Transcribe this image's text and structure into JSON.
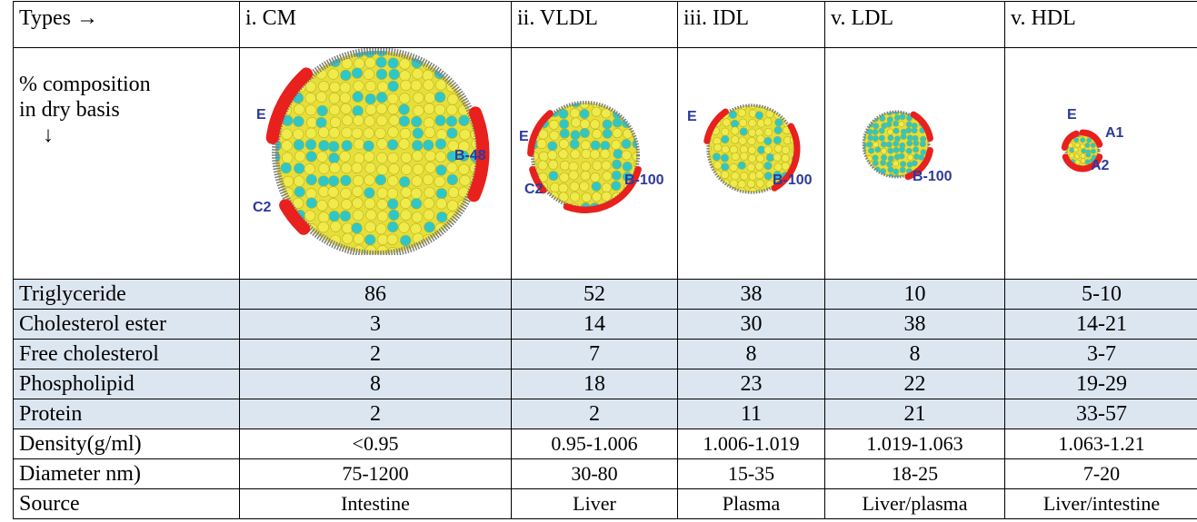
{
  "table": {
    "header": [
      "Types →",
      "i. CM",
      "ii. VLDL",
      "iii. IDL",
      "v. LDL",
      "v. HDL"
    ],
    "composition_label": [
      "% composition",
      "in dry basis",
      "↓"
    ],
    "diagrams": [
      {
        "labels": [
          "E",
          "B-48",
          "C2"
        ]
      },
      {
        "labels": [
          "E",
          "C2",
          "B-100"
        ]
      },
      {
        "labels": [
          "E",
          "B-100"
        ]
      },
      {
        "labels": [
          "B-100"
        ]
      },
      {
        "labels": [
          "E",
          "A1",
          "A2"
        ]
      }
    ],
    "rows": [
      [
        "Triglyceride",
        "86",
        "52",
        "38",
        "10",
        "5-10"
      ],
      [
        "Cholesterol ester",
        "3",
        "14",
        "30",
        "38",
        "14-21"
      ],
      [
        "Free cholesterol",
        "2",
        "7",
        "8",
        "8",
        "3-7"
      ],
      [
        "Phospholipid",
        "8",
        "18",
        "23",
        "22",
        "19-29"
      ],
      [
        "Protein",
        "2",
        "2",
        "11",
        "21",
        "33-57"
      ],
      [
        "Density(g/ml)",
        "<0.95",
        "0.95-1.006",
        "1.006-1.019",
        "1.019-1.063",
        "1.063-1.21"
      ],
      [
        "Diameter nm)",
        "75-1200",
        "30-80",
        "15-35",
        "18-25",
        "7-20"
      ],
      [
        "Source",
        "Intestine",
        "Liver",
        "Plasma",
        "Liver/plasma",
        "Liver/intestine"
      ]
    ]
  }
}
